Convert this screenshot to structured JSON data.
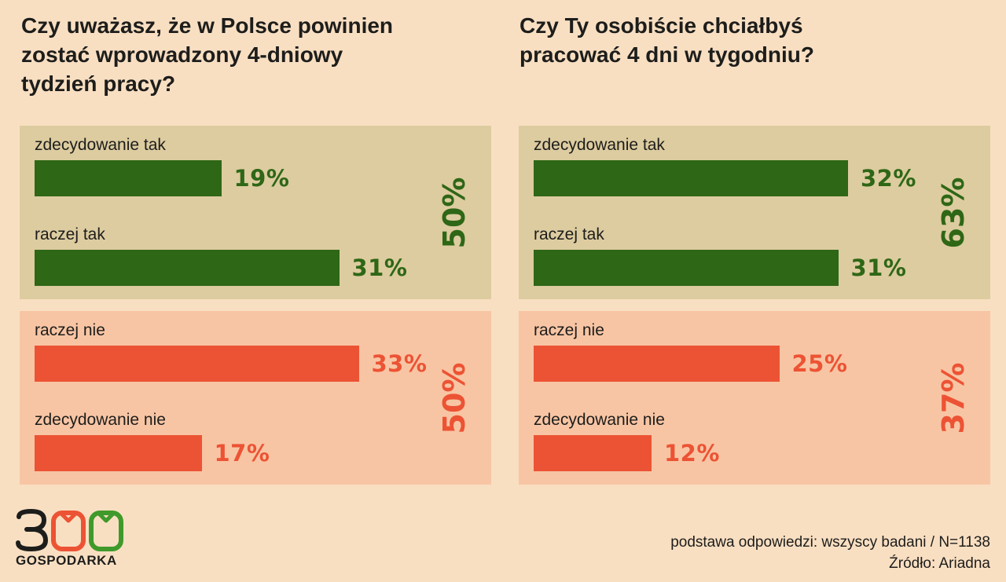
{
  "colors": {
    "background": "#f9dfc2",
    "positive_group_bg": "#ddcca0",
    "negative_group_bg": "#f8c5a4",
    "positive": "#2e6716",
    "negative": "#ec5334"
  },
  "chart_data": [
    {
      "type": "bar",
      "orientation": "horizontal",
      "title": "Czy uważasz, że w Polsce powinien\nzostać wprowadzony 4-dniowy\ntydzień pracy?",
      "categories": [
        "zdecydowanie tak",
        "raczej tak",
        "raczej nie",
        "zdecydowanie nie"
      ],
      "values": [
        19,
        31,
        33,
        17
      ],
      "value_labels": [
        "19%",
        "31%",
        "33%",
        "17%"
      ],
      "groups": [
        {
          "kind": "positive",
          "total": "50%",
          "categories": [
            "zdecydowanie tak",
            "raczej tak"
          ]
        },
        {
          "kind": "negative",
          "total": "50%",
          "categories": [
            "raczej nie",
            "zdecydowanie nie"
          ]
        }
      ],
      "unit": "%"
    },
    {
      "type": "bar",
      "orientation": "horizontal",
      "title": "Czy Ty osobiście chciałbyś\npracować 4 dni w tygodniu?",
      "categories": [
        "zdecydowanie tak",
        "raczej tak",
        "raczej nie",
        "zdecydowanie nie"
      ],
      "values": [
        32,
        31,
        25,
        12
      ],
      "value_labels": [
        "32%",
        "31%",
        "25%",
        "12%"
      ],
      "groups": [
        {
          "kind": "positive",
          "total": "63%",
          "categories": [
            "zdecydowanie tak",
            "raczej tak"
          ]
        },
        {
          "kind": "negative",
          "total": "37%",
          "categories": [
            "raczej nie",
            "zdecydowanie nie"
          ]
        }
      ],
      "unit": "%"
    }
  ],
  "logo": {
    "number": "300",
    "text": "GOSPODARKA"
  },
  "footer": {
    "base": "podstawa odpowiedzi: wszyscy badani / N=1138",
    "source": "Źródło: Ariadna"
  }
}
